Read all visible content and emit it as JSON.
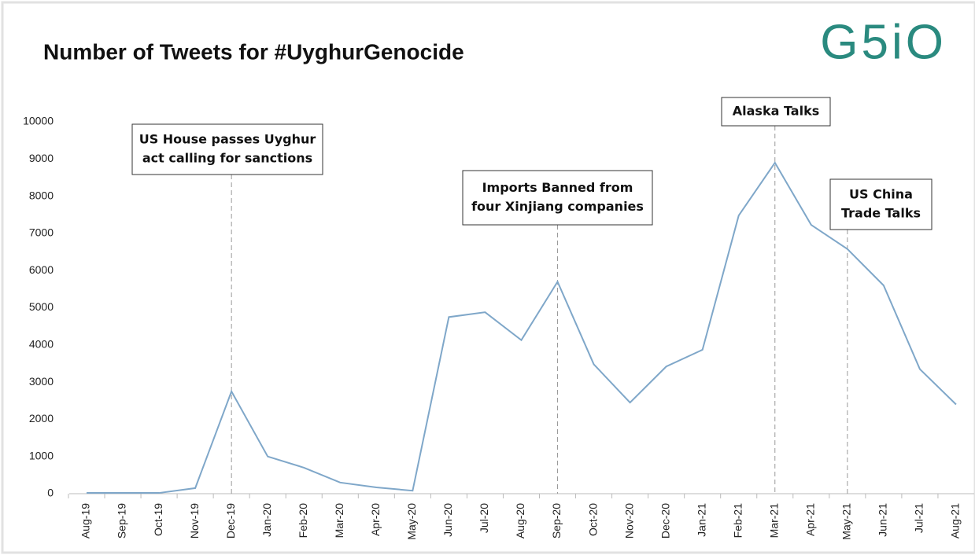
{
  "chart_data": {
    "type": "line",
    "title": "Number of Tweets for #UyghurGenocide",
    "logo": "G5iO",
    "categories": [
      "Aug-19",
      "Sep-19",
      "Oct-19",
      "Nov-19",
      "Dec-19",
      "Jan-20",
      "Feb-20",
      "Mar-20",
      "Apr-20",
      "May-20",
      "Jun-20",
      "Jul-20",
      "Aug-20",
      "Sep-20",
      "Oct-20",
      "Nov-20",
      "Dec-20",
      "Jan-21",
      "Feb-21",
      "Mar-21",
      "Apr-21",
      "May-21",
      "Jun-21",
      "Jul-21",
      "Aug-21"
    ],
    "series": [
      {
        "name": "Tweets",
        "color": "#7fa7c9",
        "values": [
          20,
          20,
          20,
          150,
          2750,
          1000,
          700,
          300,
          170,
          80,
          4750,
          4880,
          4130,
          5700,
          3480,
          2450,
          3420,
          3870,
          7480,
          8900,
          7230,
          6580,
          5600,
          3350,
          2400
        ]
      }
    ],
    "ylim": [
      0,
      10000
    ],
    "yticks": [
      0,
      1000,
      2000,
      3000,
      4000,
      5000,
      6000,
      7000,
      8000,
      9000,
      10000
    ],
    "grid": false,
    "annotations": [
      {
        "at": "Dec-19",
        "lines": [
          "US House passes Uyghur",
          "act calling for sanctions"
        ]
      },
      {
        "at": "Sep-20",
        "lines": [
          "Imports Banned from",
          "four Xinjiang companies"
        ]
      },
      {
        "at": "Mar-21",
        "lines": [
          "Alaska Talks"
        ]
      },
      {
        "at": "May-21",
        "lines": [
          "US China",
          "Trade Talks"
        ]
      }
    ]
  }
}
